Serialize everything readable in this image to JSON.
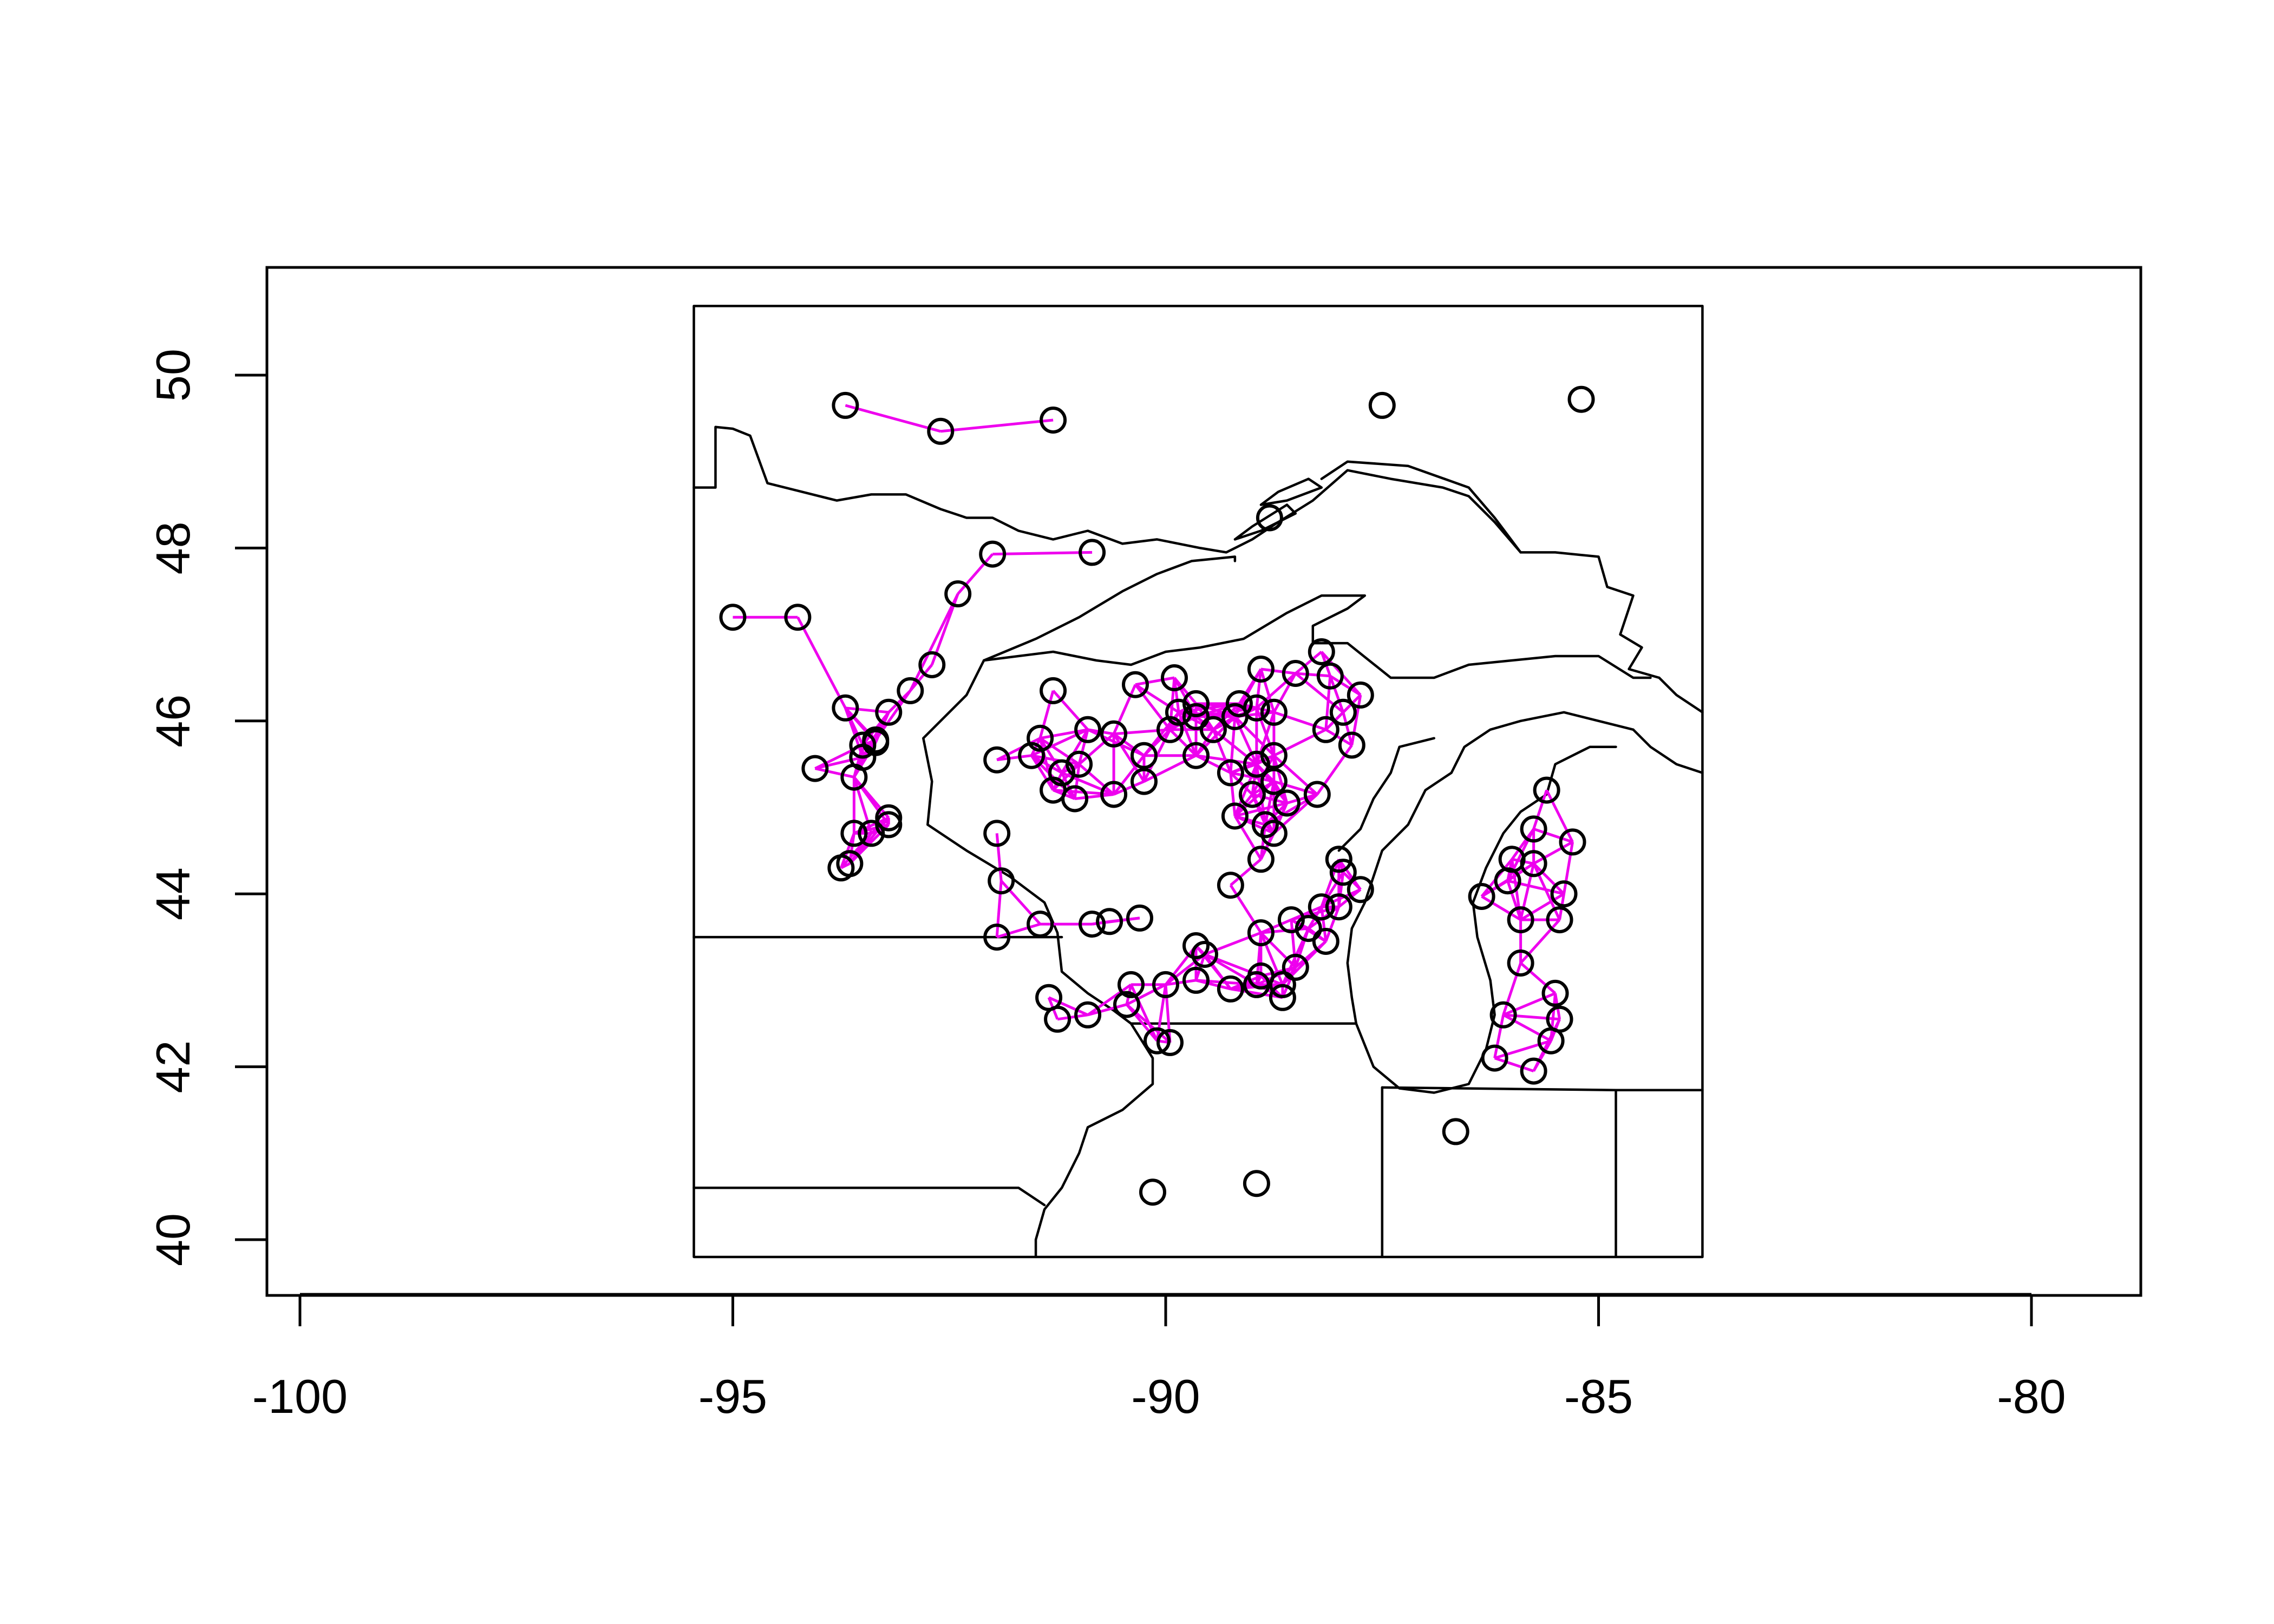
{
  "chart_data": {
    "type": "scatter",
    "description_free": true,
    "xlim": [
      -100,
      -80
    ],
    "ylim": [
      40,
      50
    ],
    "x_ticks": [
      -100,
      -95,
      -90,
      -85,
      -80
    ],
    "y_ticks": [
      40,
      42,
      44,
      46,
      48,
      50
    ],
    "x_tick_labels": [
      "-100",
      "-95",
      "-90",
      "-85",
      "-80"
    ],
    "y_tick_labels": [
      "40",
      "42",
      "44",
      "46",
      "48",
      "50"
    ],
    "xlabel": "",
    "ylabel": "",
    "title": "",
    "edge_color": "#ee00ee",
    "node_color": "#000000",
    "map_extent": {
      "lon": [
        -95.45,
        -83.8
      ],
      "lat": [
        39.8,
        50.8
      ]
    },
    "points": [
      [
        -93.7,
        49.65
      ],
      [
        -92.6,
        49.35
      ],
      [
        -91.3,
        49.48
      ],
      [
        -87.5,
        49.65
      ],
      [
        -85.2,
        49.72
      ],
      [
        -88.8,
        48.35
      ],
      [
        -95.0,
        47.2
      ],
      [
        -94.25,
        47.2
      ],
      [
        -92.0,
        47.93
      ],
      [
        -90.85,
        47.95
      ],
      [
        -92.4,
        47.47
      ],
      [
        -92.7,
        46.65
      ],
      [
        -92.95,
        46.35
      ],
      [
        -93.2,
        46.1
      ],
      [
        -93.7,
        46.15
      ],
      [
        -93.35,
        45.78
      ],
      [
        -93.5,
        45.72
      ],
      [
        -93.5,
        45.58
      ],
      [
        -93.6,
        45.35
      ],
      [
        -94.05,
        45.45
      ],
      [
        -93.35,
        45.75
      ],
      [
        -93.6,
        44.7
      ],
      [
        -93.4,
        44.7
      ],
      [
        -93.2,
        44.8
      ],
      [
        -93.2,
        44.88
      ],
      [
        -93.75,
        44.3
      ],
      [
        -93.65,
        44.35
      ],
      [
        -91.95,
        44.7
      ],
      [
        -91.95,
        45.55
      ],
      [
        -91.55,
        45.6
      ],
      [
        -91.45,
        45.8
      ],
      [
        -91.3,
        46.35
      ],
      [
        -91.2,
        45.4
      ],
      [
        -91.3,
        45.2
      ],
      [
        -91.05,
        45.1
      ],
      [
        -91.0,
        45.5
      ],
      [
        -90.9,
        45.9
      ],
      [
        -90.6,
        45.85
      ],
      [
        -90.6,
        45.15
      ],
      [
        -90.35,
        46.42
      ],
      [
        -90.25,
        45.6
      ],
      [
        -90.25,
        45.3
      ],
      [
        -89.9,
        46.5
      ],
      [
        -89.85,
        46.1
      ],
      [
        -89.95,
        45.9
      ],
      [
        -89.65,
        46.2
      ],
      [
        -89.65,
        46.05
      ],
      [
        -89.65,
        45.6
      ],
      [
        -89.45,
        45.9
      ],
      [
        -89.2,
        46.05
      ],
      [
        -89.15,
        46.2
      ],
      [
        -88.95,
        46.15
      ],
      [
        -88.9,
        46.6
      ],
      [
        -88.75,
        46.1
      ],
      [
        -88.5,
        46.55
      ],
      [
        -88.2,
        46.8
      ],
      [
        -88.1,
        46.52
      ],
      [
        -87.95,
        46.1
      ],
      [
        -87.75,
        46.3
      ],
      [
        -87.85,
        45.72
      ],
      [
        -88.15,
        45.9
      ],
      [
        -89.25,
        45.4
      ],
      [
        -88.95,
        45.5
      ],
      [
        -88.75,
        45.6
      ],
      [
        -89.0,
        45.15
      ],
      [
        -88.75,
        45.3
      ],
      [
        -88.6,
        45.05
      ],
      [
        -88.25,
        45.15
      ],
      [
        -89.2,
        44.9
      ],
      [
        -88.85,
        44.8
      ],
      [
        -88.75,
        44.7
      ],
      [
        -88.9,
        44.4
      ],
      [
        -89.25,
        44.1
      ],
      [
        -88.0,
        44.4
      ],
      [
        -87.95,
        44.25
      ],
      [
        -87.75,
        44.05
      ],
      [
        -88.2,
        43.85
      ],
      [
        -88.35,
        43.6
      ],
      [
        -88.0,
        43.85
      ],
      [
        -88.15,
        43.45
      ],
      [
        -91.9,
        44.15
      ],
      [
        -91.95,
        43.5
      ],
      [
        -91.45,
        43.65
      ],
      [
        -90.85,
        43.65
      ],
      [
        -90.65,
        43.68
      ],
      [
        -90.3,
        43.72
      ],
      [
        -88.9,
        43.55
      ],
      [
        -89.65,
        43.4
      ],
      [
        -89.55,
        43.3
      ],
      [
        -88.55,
        43.7
      ],
      [
        -88.9,
        43.05
      ],
      [
        -89.25,
        42.9
      ],
      [
        -88.95,
        42.95
      ],
      [
        -88.5,
        43.15
      ],
      [
        -88.65,
        42.95
      ],
      [
        -88.65,
        42.8
      ],
      [
        -91.35,
        42.8
      ],
      [
        -91.25,
        42.55
      ],
      [
        -90.9,
        42.6
      ],
      [
        -90.45,
        42.72
      ],
      [
        -90.4,
        42.95
      ],
      [
        -90.1,
        42.3
      ],
      [
        -89.95,
        42.28
      ],
      [
        -90.0,
        42.95
      ],
      [
        -89.65,
        43.0
      ],
      [
        -85.6,
        45.2
      ],
      [
        -85.3,
        44.6
      ],
      [
        -85.75,
        44.75
      ],
      [
        -86.0,
        44.4
      ],
      [
        -86.35,
        43.97
      ],
      [
        -86.05,
        44.15
      ],
      [
        -85.75,
        44.35
      ],
      [
        -85.4,
        44.0
      ],
      [
        -85.45,
        43.7
      ],
      [
        -85.9,
        43.7
      ],
      [
        -85.9,
        43.2
      ],
      [
        -85.5,
        42.85
      ],
      [
        -85.45,
        42.55
      ],
      [
        -85.55,
        42.3
      ],
      [
        -86.1,
        42.6
      ],
      [
        -86.2,
        42.1
      ],
      [
        -85.75,
        41.95
      ],
      [
        -86.65,
        41.25
      ],
      [
        -90.15,
        40.55
      ],
      [
        -88.95,
        40.65
      ]
    ]
  }
}
